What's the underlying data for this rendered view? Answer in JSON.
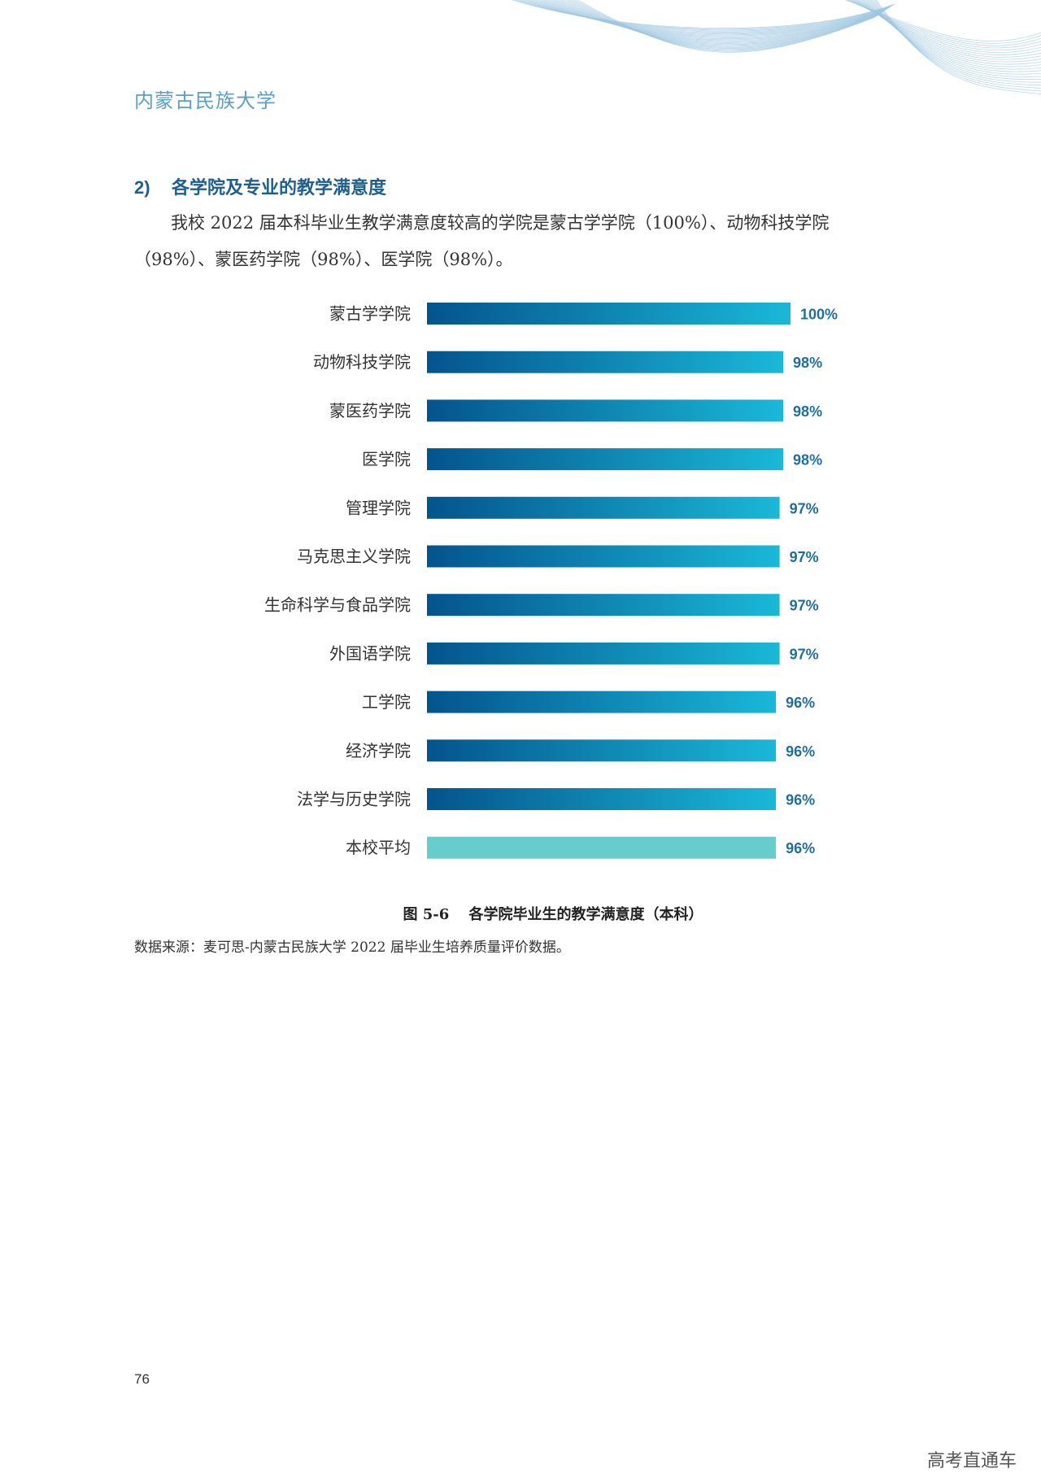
{
  "header": {
    "title": "内蒙古民族大学"
  },
  "section": {
    "number": "2)",
    "heading": "各学院及专业的教学满意度",
    "paragraph": "我校 2022 届本科毕业生教学满意度较高的学院是蒙古学学院（100%）、动物科技学院（98%）、蒙医药学院（98%）、医学院（98%）。"
  },
  "colors": {
    "bar_start": "#04548c",
    "bar_end": "#1ab8d8",
    "average_bar": "#66cccc",
    "value_label": "#1f6ea0",
    "header_accent": "#5b9fc6"
  },
  "chart_data": {
    "type": "bar",
    "orientation": "horizontal",
    "categories": [
      "蒙古学学院",
      "动物科技学院",
      "蒙医药学院",
      "医学院",
      "管理学院",
      "马克思主义学院",
      "生命科学与食品学院",
      "外国语学院",
      "工学院",
      "经济学院",
      "法学与历史学院",
      "本校平均"
    ],
    "values": [
      100,
      98,
      98,
      98,
      97,
      97,
      97,
      97,
      96,
      96,
      96,
      96
    ],
    "value_labels": [
      "100%",
      "98%",
      "98%",
      "98%",
      "97%",
      "97%",
      "97%",
      "97%",
      "96%",
      "96%",
      "96%",
      "96%"
    ],
    "highlight_index": 11,
    "unit": "%",
    "xlim": [
      0,
      100
    ],
    "grid": false,
    "legend": "none"
  },
  "caption": "图 5-6　 各学院毕业生的教学满意度（本科）",
  "source": "数据来源：麦可思-内蒙古民族大学 2022 届毕业生培养质量评价数据。",
  "page_number": "76",
  "watermark": "高考直通车"
}
